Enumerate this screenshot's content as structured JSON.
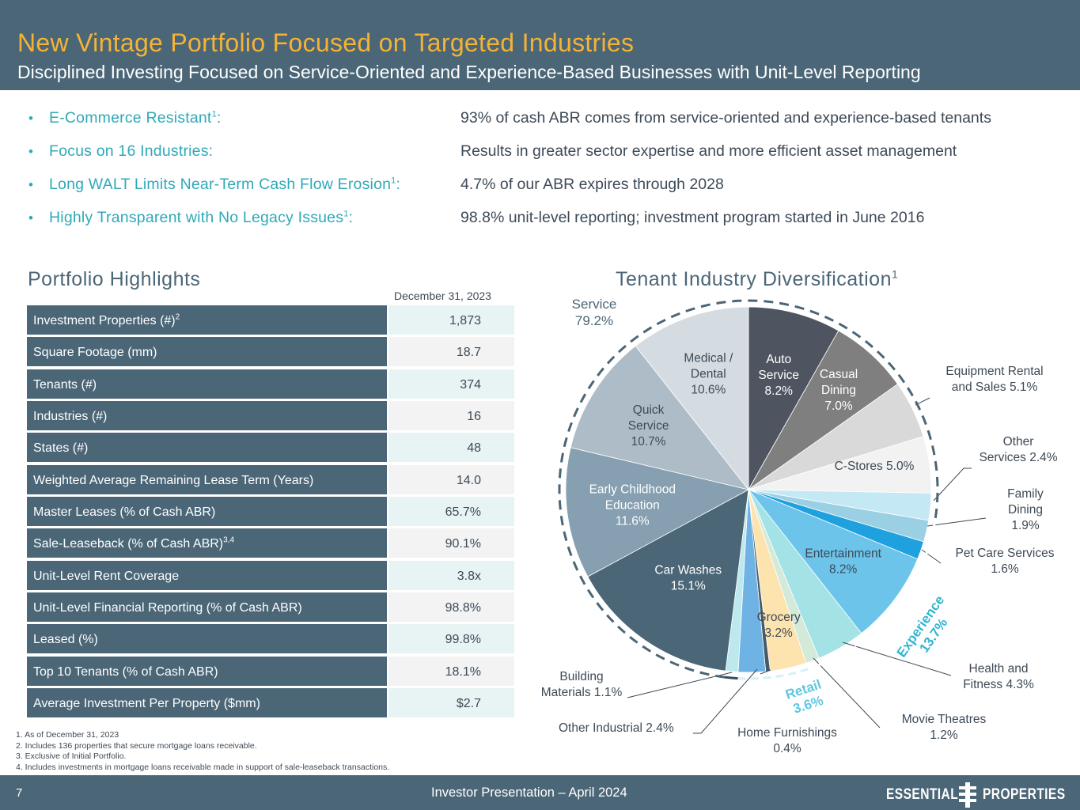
{
  "header": {
    "title": "New Vintage Portfolio Focused on Targeted Industries",
    "subtitle": "Disciplined Investing Focused on Service-Oriented and Experience-Based Businesses with Unit-Level Reporting"
  },
  "bullets": [
    {
      "label": "E-Commerce Resistant",
      "sup": "1",
      "colon": ":",
      "text": "93% of cash ABR comes from service-oriented and experience-based tenants"
    },
    {
      "label": "Focus on 16 Industries:",
      "sup": "",
      "colon": "",
      "text": "Results in greater sector expertise and more efficient asset management"
    },
    {
      "label": "Long WALT Limits Near-Term Cash Flow Erosion",
      "sup": "1",
      "colon": ":",
      "text": "4.7% of our ABR expires through 2028"
    },
    {
      "label": "Highly Transparent with No Legacy Issues",
      "sup": "1",
      "colon": ":",
      "text": "98.8% unit-level reporting; investment program started in June 2016"
    }
  ],
  "highlights": {
    "title": "Portfolio Highlights",
    "column_header": "December 31, 2023",
    "rows": [
      {
        "label": "Investment Properties (#)",
        "sup": "2",
        "value": "1,873"
      },
      {
        "label": "Square Footage (mm)",
        "sup": "",
        "value": "18.7"
      },
      {
        "label": "Tenants (#)",
        "sup": "",
        "value": "374"
      },
      {
        "label": "Industries (#)",
        "sup": "",
        "value": "16"
      },
      {
        "label": "States (#)",
        "sup": "",
        "value": "48"
      },
      {
        "label": "Weighted Average Remaining Lease Term (Years)",
        "sup": "",
        "value": "14.0"
      },
      {
        "label": "Master Leases (% of Cash ABR)",
        "sup": "",
        "value": "65.7%"
      },
      {
        "label": "Sale-Leaseback (% of Cash ABR)",
        "sup": "3,4",
        "value": "90.1%"
      },
      {
        "label": "Unit-Level Rent Coverage",
        "sup": "",
        "value": "3.8x"
      },
      {
        "label": "Unit-Level Financial Reporting (% of Cash ABR)",
        "sup": "",
        "value": "98.8%"
      },
      {
        "label": "Leased (%)",
        "sup": "",
        "value": "99.8%"
      },
      {
        "label": "Top 10 Tenants (% of Cash ABR)",
        "sup": "",
        "value": "18.1%"
      },
      {
        "label": "Average Investment Per Property ($mm)",
        "sup": "",
        "value": "$2.7"
      }
    ]
  },
  "footnotes": [
    "1.  As of December 31, 2023",
    "2.  Includes 136 properties that secure mortgage loans receivable.",
    "3.  Exclusive of Initial Portfolio.",
    "4.  Includes investments in mortgage loans receivable made in support of sale-leaseback transactions."
  ],
  "footer": {
    "page_number": "7",
    "center_text": "Investor Presentation – April 2024",
    "logo_left": "ESSENTIAL",
    "logo_right": "PROPERTIES"
  },
  "chart_data": {
    "type": "pie",
    "title": "Tenant Industry Diversification",
    "title_sup": "1",
    "unit": "% of cash ABR",
    "slices": [
      {
        "name": "Auto Service",
        "value": 8.2,
        "label_lines": [
          "Auto",
          "Service",
          "8.2%"
        ],
        "color": "#4e5560",
        "text_color": "#ffffff"
      },
      {
        "name": "Casual Dining",
        "value": 7.0,
        "label_lines": [
          "Casual",
          "Dining",
          "7.0%"
        ],
        "color": "#7f7f7f",
        "text_color": "#ffffff"
      },
      {
        "name": "Equipment Rental and Sales",
        "value": 5.1,
        "label_lines": [
          "Equipment Rental",
          "and Sales 5.1%"
        ],
        "color": "#d9d9d9",
        "text_color": "#3d4a57"
      },
      {
        "name": "C-Stores",
        "value": 5.0,
        "label_lines": [
          "C-Stores 5.0%"
        ],
        "color": "#f2f2f2",
        "text_color": "#3d4a57"
      },
      {
        "name": "Other Services",
        "value": 2.4,
        "label_lines": [
          "Other",
          "Services 2.4%"
        ],
        "color": "#c5e8f5",
        "text_color": "#3d4a57"
      },
      {
        "name": "Family Dining",
        "value": 1.9,
        "label_lines": [
          "Family",
          "Dining",
          "1.9%"
        ],
        "color": "#9bcfe3",
        "text_color": "#3d4a57"
      },
      {
        "name": "Pet Care Services",
        "value": 1.6,
        "label_lines": [
          "Pet Care Services",
          "1.6%"
        ],
        "color": "#1fa1e0",
        "text_color": "#3d4a57"
      },
      {
        "name": "Entertainment",
        "value": 8.2,
        "label_lines": [
          "Entertainment",
          "8.2%"
        ],
        "color": "#6cc4ea",
        "text_color": "#3d4a57"
      },
      {
        "name": "Health and Fitness",
        "value": 4.3,
        "label_lines": [
          "Health and",
          "Fitness 4.3%"
        ],
        "color": "#a3e3e6",
        "text_color": "#3d4a57"
      },
      {
        "name": "Movie Theatres",
        "value": 1.2,
        "label_lines": [
          "Movie Theatres",
          "1.2%"
        ],
        "color": "#d3ead9",
        "text_color": "#3d4a57"
      },
      {
        "name": "Grocery",
        "value": 3.2,
        "label_lines": [
          "Grocery",
          "3.2%"
        ],
        "color": "#fde3ae",
        "text_color": "#3d4a57"
      },
      {
        "name": "Home Furnishings",
        "value": 0.4,
        "label_lines": [
          "Home Furnishings",
          "0.4%"
        ],
        "color": "#475a66",
        "text_color": "#3d4a57"
      },
      {
        "name": "Other Industrial",
        "value": 2.4,
        "label_lines": [
          "Other Industrial 2.4%"
        ],
        "color": "#6eb3e3",
        "text_color": "#3d4a57"
      },
      {
        "name": "Building Materials",
        "value": 1.1,
        "label_lines": [
          "Building",
          "Materials 1.1%"
        ],
        "color": "#bde9ee",
        "text_color": "#3d4a57"
      },
      {
        "name": "Car Washes",
        "value": 15.1,
        "label_lines": [
          "Car Washes",
          "15.1%"
        ],
        "color": "#4b6677",
        "text_color": "#ffffff"
      },
      {
        "name": "Early Childhood Education",
        "value": 11.6,
        "label_lines": [
          "Early Childhood",
          "Education",
          "11.6%"
        ],
        "color": "#869fb1",
        "text_color": "#ffffff"
      },
      {
        "name": "Quick Service",
        "value": 10.7,
        "label_lines": [
          "Quick",
          "Service",
          "10.7%"
        ],
        "color": "#aebcc7",
        "text_color": "#3d4a57"
      },
      {
        "name": "Medical / Dental",
        "value": 10.6,
        "label_lines": [
          "Medical /",
          "Dental",
          "10.6%"
        ],
        "color": "#d4dce2",
        "text_color": "#3d4a57"
      }
    ],
    "groups": [
      {
        "name": "Service",
        "label_lines": [
          "Service",
          "79.2%"
        ],
        "color": "#4b6677",
        "value": 79.2
      },
      {
        "name": "Experience",
        "label_lines": [
          "Experience",
          "13.7%"
        ],
        "color": "#2fb5d0",
        "value": 13.7
      },
      {
        "name": "Retail",
        "label_lines": [
          "Retail",
          "3.6%"
        ],
        "color": "#5ec8e0",
        "value": 3.6
      }
    ]
  }
}
